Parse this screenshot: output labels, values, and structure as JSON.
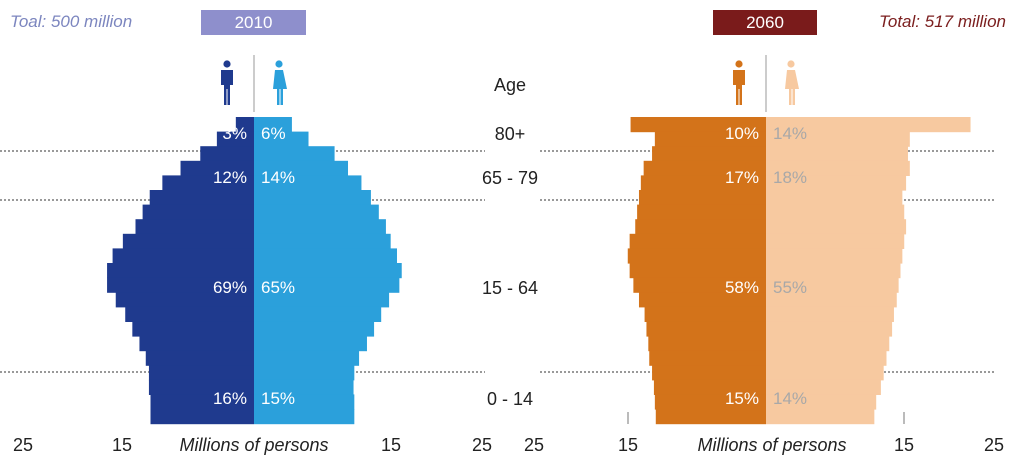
{
  "header": {
    "left_total": "Toal: 500 million",
    "left_year": "2010",
    "right_year": "2060",
    "right_total": "Total: 517 million"
  },
  "colors": {
    "male_2010": "#1f3a8e",
    "female_2010": "#2ba0db",
    "male_2060": "#d3731a",
    "female_2060": "#f7c9a0",
    "year_2010_box": "#8e8fcc",
    "year_2060_box": "#7a1b1b",
    "label_light": "#ffffff",
    "label_muted": "#a8a8a8",
    "text": "#222222"
  },
  "icons": {
    "male": "male-person-icon",
    "female": "female-person-icon"
  },
  "chart_data": [
    {
      "type": "population-pyramid",
      "year": "2010",
      "total": "Toal: 500 million",
      "xlabel": "Millions of persons",
      "x_ticks": [
        "25",
        "15",
        "15",
        "25"
      ],
      "groups": [
        {
          "label": "80+",
          "male_pct": "3%",
          "female_pct": "6%"
        },
        {
          "label": "65 - 79",
          "male_pct": "12%",
          "female_pct": "14%"
        },
        {
          "label": "15 - 64",
          "male_pct": "69%",
          "female_pct": "65%"
        },
        {
          "label": "0 - 14",
          "male_pct": "16%",
          "female_pct": "15%"
        }
      ],
      "series": [
        {
          "name": "Male",
          "values": [
            2.3,
            4.7,
            6.8,
            9.3,
            11.6,
            13.2,
            14.1,
            15.0,
            16.6,
            17.9,
            18.6,
            18.6,
            17.5,
            16.3,
            15.4,
            14.5,
            13.7,
            13.3,
            13.3,
            13.1,
            13.1
          ]
        },
        {
          "name": "Female",
          "values": [
            4.8,
            6.9,
            10.2,
            11.9,
            13.6,
            14.8,
            15.8,
            16.7,
            17.3,
            18.1,
            18.7,
            18.4,
            17.1,
            16.1,
            15.2,
            14.3,
            13.3,
            12.7,
            12.6,
            12.7,
            12.7
          ]
        }
      ]
    },
    {
      "type": "population-pyramid",
      "year": "2060",
      "total": "Total: 517 million",
      "xlabel": "Millions of persons",
      "x_ticks": [
        "25",
        "15",
        "15",
        "25"
      ],
      "groups": [
        {
          "label": "80+",
          "male_pct": "10%",
          "female_pct": "14%"
        },
        {
          "label": "65 - 79",
          "male_pct": "17%",
          "female_pct": "18%"
        },
        {
          "label": "15 - 64",
          "male_pct": "58%",
          "female_pct": "55%"
        },
        {
          "label": "0 - 14",
          "male_pct": "15%",
          "female_pct": "14%"
        }
      ],
      "series": [
        {
          "name": "Male",
          "values": [
            14.5,
            11.9,
            12.2,
            13.1,
            13.4,
            13.6,
            13.8,
            14.0,
            14.6,
            14.8,
            14.6,
            14.2,
            13.6,
            13.0,
            12.8,
            12.6,
            12.5,
            12.2,
            12.0,
            11.9,
            11.8
          ]
        },
        {
          "name": "Female",
          "values": [
            21.9,
            15.4,
            15.2,
            15.4,
            15.0,
            14.6,
            14.8,
            15.0,
            14.8,
            14.6,
            14.4,
            14.2,
            14.0,
            13.7,
            13.5,
            13.2,
            12.9,
            12.6,
            12.3,
            11.8,
            11.6
          ]
        }
      ]
    }
  ]
}
